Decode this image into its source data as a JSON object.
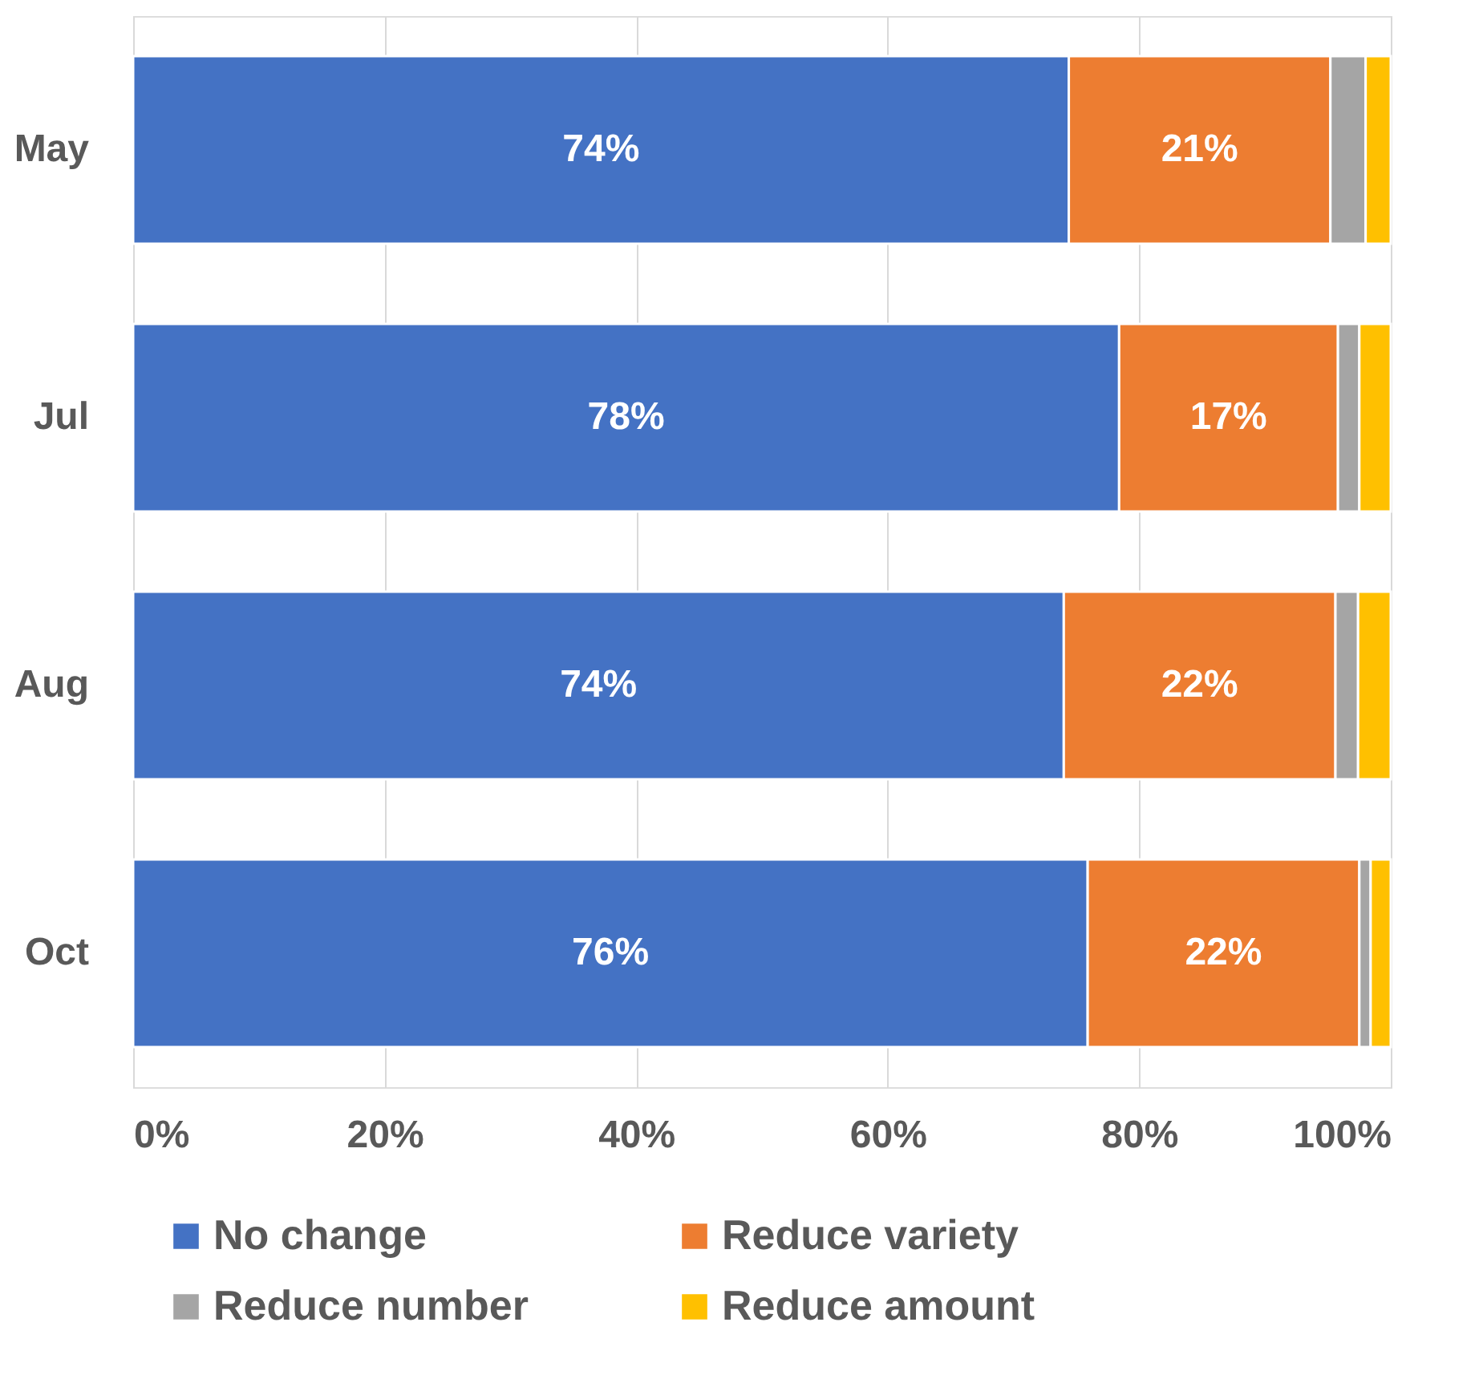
{
  "chart_data": {
    "type": "bar",
    "orientation": "horizontal",
    "stacked": true,
    "categories": [
      "May",
      "Jul",
      "Aug",
      "Oct"
    ],
    "series": [
      {
        "name": "No change",
        "color": "#4472c4",
        "values": [
          74.4,
          78.4,
          74.0,
          75.9
        ],
        "value_labels": [
          "74%",
          "78%",
          "74%",
          "76%"
        ]
      },
      {
        "name": "Reduce variety",
        "color": "#ed7d31",
        "values": [
          20.8,
          17.4,
          21.6,
          21.6
        ],
        "value_labels": [
          "21%",
          "17%",
          "22%",
          "22%"
        ]
      },
      {
        "name": "Reduce number",
        "color": "#a5a5a5",
        "values": [
          2.8,
          1.7,
          1.8,
          0.9
        ]
      },
      {
        "name": "Reduce amount",
        "color": "#ffc000",
        "values": [
          2.0,
          2.5,
          2.6,
          1.6
        ]
      }
    ],
    "xlim": [
      0,
      100
    ],
    "xticks": [
      {
        "value": 0,
        "label": "0%"
      },
      {
        "value": 20,
        "label": "20%"
      },
      {
        "value": 40,
        "label": "40%"
      },
      {
        "value": 60,
        "label": "60%"
      },
      {
        "value": 80,
        "label": "80%"
      },
      {
        "value": 100,
        "label": "100%"
      }
    ],
    "grid": "x",
    "legend": "bottom"
  }
}
